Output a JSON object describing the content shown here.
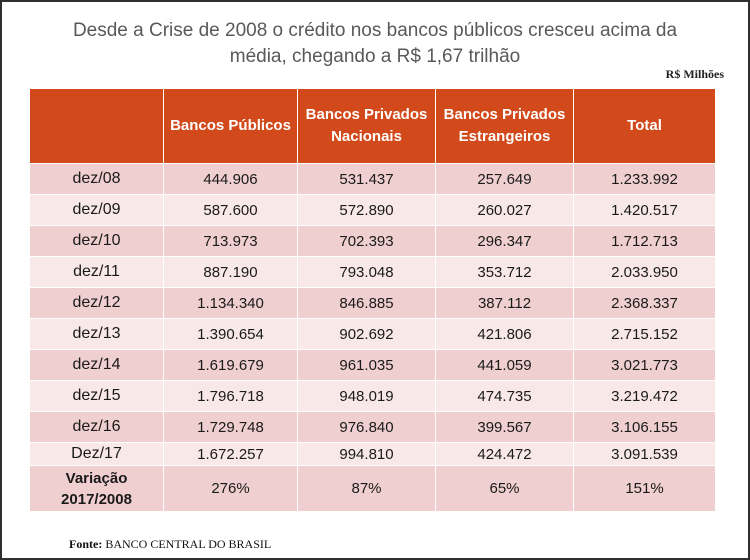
{
  "title_line1": "Desde a Crise de 2008 o crédito nos bancos públicos cresceu acima da",
  "title_line2": "média, chegando a R$ 1,67 trilhão",
  "unit_label": "R$ Milhões",
  "source_label": "Fonte:",
  "source_text": "BANCO CENTRAL DO BRASIL",
  "chart_data": {
    "type": "table",
    "title": "Desde a Crise de 2008 o crédito nos bancos públicos cresceu acima da média, chegando a R$ 1,67 trilhão",
    "unit": "R$ Milhões",
    "columns": [
      "",
      "Bancos Públicos",
      "Bancos Privados Nacionais",
      "Bancos Privados Estrangeiros",
      "Total"
    ],
    "header_lines": [
      [
        ""
      ],
      [
        "Bancos Públicos"
      ],
      [
        "Bancos Privados",
        "Nacionais"
      ],
      [
        "Bancos Privados",
        "Estrangeiros"
      ],
      [
        "Total"
      ]
    ],
    "rows": [
      [
        "dez/08",
        "444.906",
        "531.437",
        "257.649",
        "1.233.992"
      ],
      [
        "dez/09",
        "587.600",
        "572.890",
        "260.027",
        "1.420.517"
      ],
      [
        "dez/10",
        "713.973",
        "702.393",
        "296.347",
        "1.712.713"
      ],
      [
        "dez/11",
        "887.190",
        "793.048",
        "353.712",
        "2.033.950"
      ],
      [
        "dez/12",
        "1.134.340",
        "846.885",
        "387.112",
        "2.368.337"
      ],
      [
        "dez/13",
        "1.390.654",
        "902.692",
        "421.806",
        "2.715.152"
      ],
      [
        "dez/14",
        "1.619.679",
        "961.035",
        "441.059",
        "3.021.773"
      ],
      [
        "dez/15",
        "1.796.718",
        "948.019",
        "474.735",
        "3.219.472"
      ],
      [
        "dez/16",
        "1.729.748",
        "976.840",
        "399.567",
        "3.106.155"
      ],
      [
        "Dez/17",
        "1.672.257",
        "994.810",
        "424.472",
        "3.091.539"
      ]
    ],
    "variation_label_lines": [
      "Variação",
      "2017/2008"
    ],
    "variation_values": [
      "276%",
      "87%",
      "65%",
      "151%"
    ]
  },
  "colors": {
    "header": "#d24a1b",
    "row_dark": "#f0cfd0",
    "row_light": "#f8e8e8",
    "title": "#595959"
  }
}
